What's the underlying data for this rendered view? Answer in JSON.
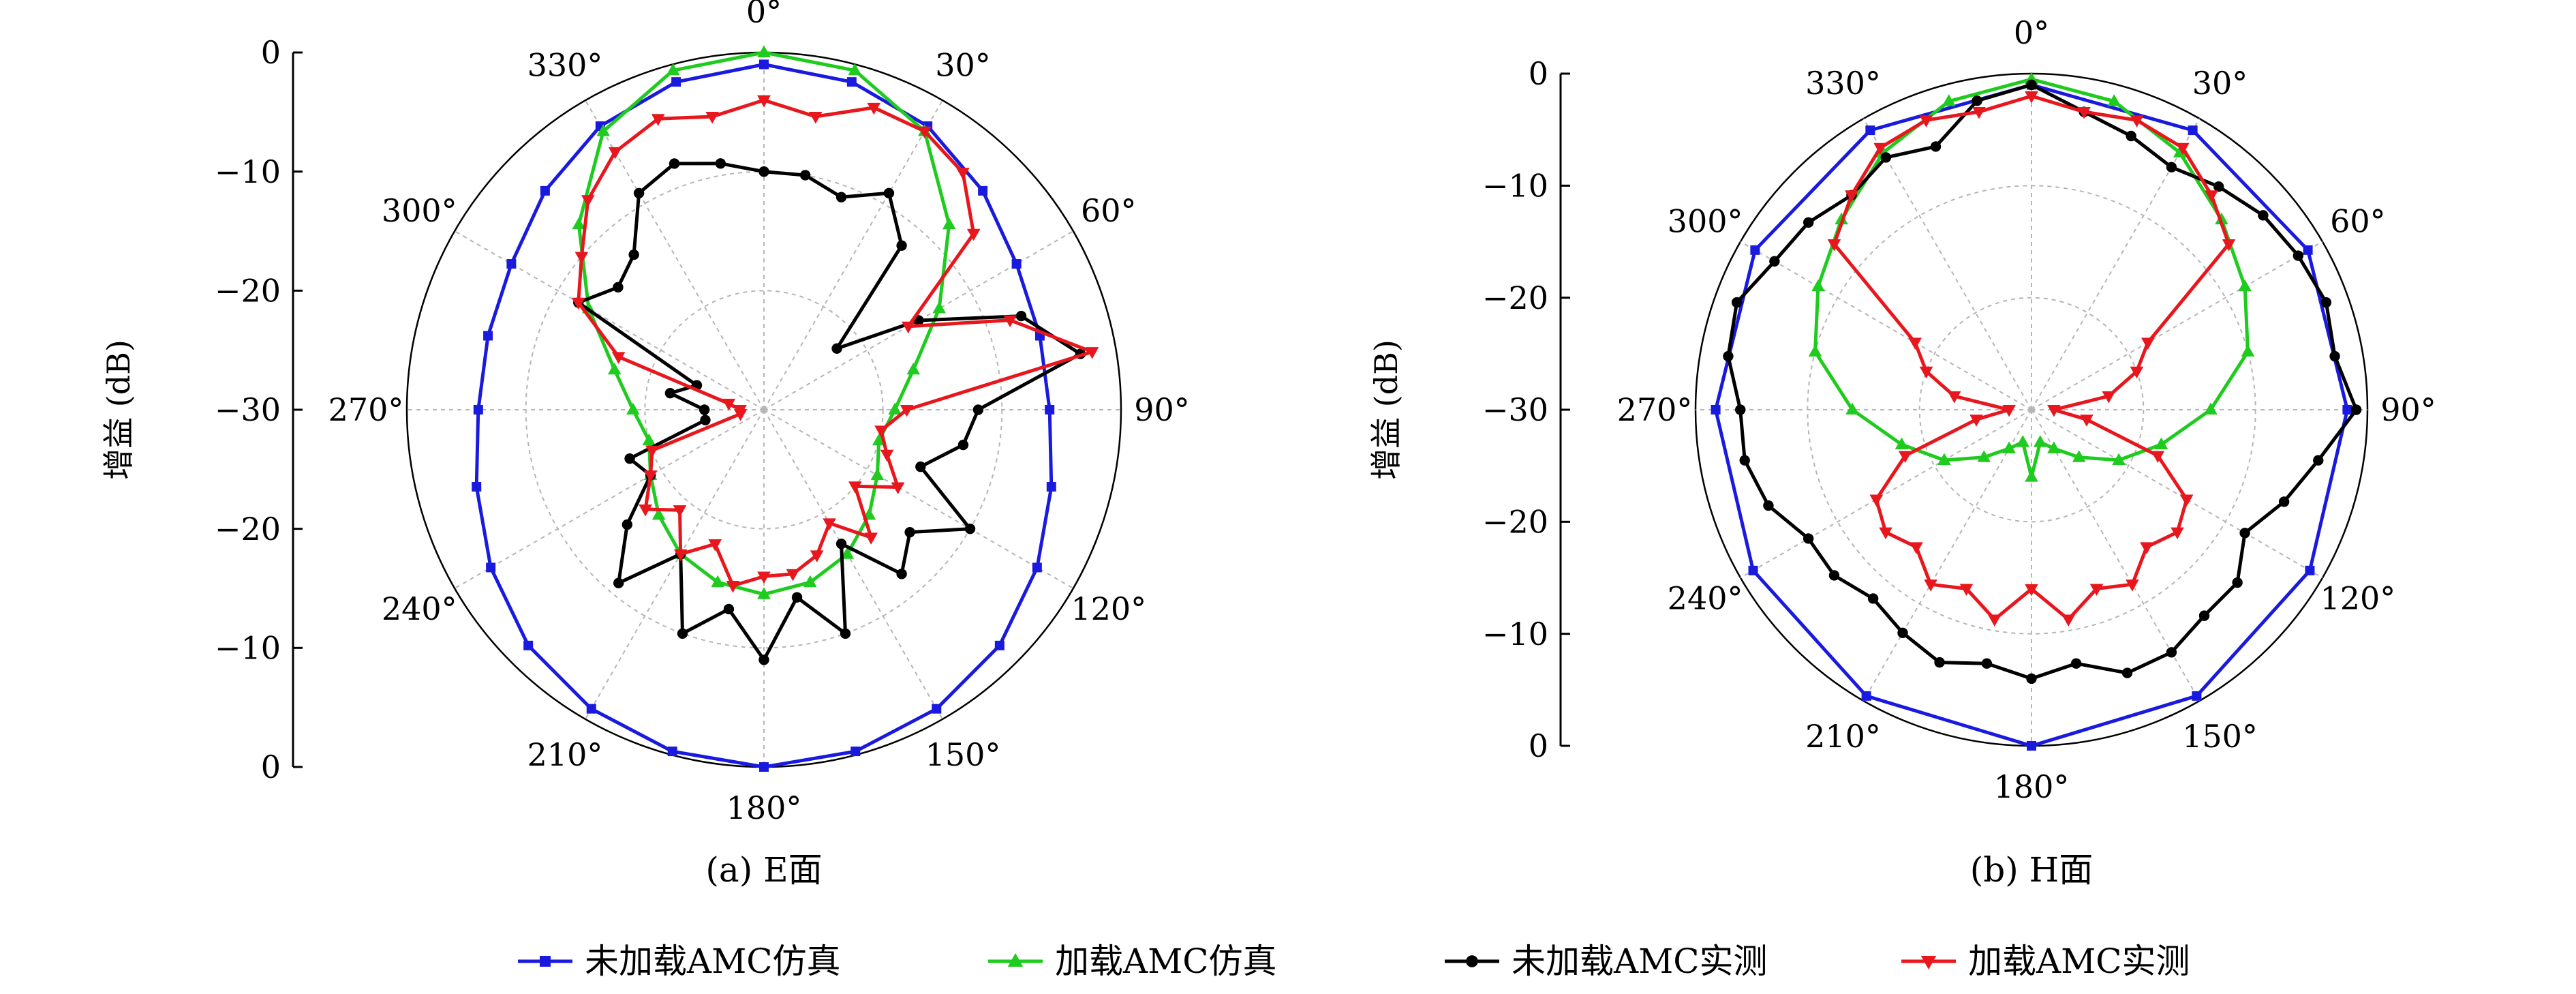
{
  "legend": [
    {
      "label": "未加载AMC仿真",
      "color": "#1a1adf",
      "marker": "square"
    },
    {
      "label": "加载AMC仿真",
      "color": "#1ecb1e",
      "marker": "triangle-up"
    },
    {
      "label": "未加载AMC实测",
      "color": "#000000",
      "marker": "circle"
    },
    {
      "label": "加载AMC实测",
      "color": "#e8161d",
      "marker": "triangle-down"
    }
  ],
  "chart_data": [
    {
      "type": "polar",
      "panel_label": "(a) E面",
      "ylabel": "增益 (dB)",
      "radial_ticks_top": [
        "0",
        "−10",
        "−20",
        "−30"
      ],
      "radial_ticks_bottom": [
        "−20",
        "−10",
        "0"
      ],
      "angle_labels": [
        "0°",
        "30°",
        "60°",
        "90°",
        "120°",
        "150°",
        "180°",
        "210°",
        "240°",
        "270°",
        "300°",
        "330°"
      ],
      "rlim_db": [
        -30,
        0
      ],
      "series": [
        {
          "name": "未加载AMC仿真",
          "color": "#1a1adf",
          "angles": [
            0,
            15,
            30,
            45,
            60,
            75,
            90,
            105,
            120,
            135,
            150,
            165,
            180,
            195,
            210,
            225,
            240,
            255,
            270,
            285,
            300,
            315,
            330,
            345,
            360
          ],
          "values": [
            -1,
            -1.5,
            -2.5,
            -4,
            -5.5,
            -6,
            -6,
            -5,
            -3.5,
            -2,
            -1,
            -0.3,
            0,
            -0.3,
            -1,
            -2,
            -3.5,
            -5,
            -6,
            -6,
            -5.5,
            -4,
            -2.5,
            -1.5,
            -1
          ]
        },
        {
          "name": "加载AMC仿真",
          "color": "#1ecb1e",
          "angles": [
            0,
            15,
            30,
            45,
            60,
            75,
            90,
            105,
            120,
            135,
            150,
            165,
            180,
            195,
            210,
            225,
            240,
            255,
            270,
            285,
            300,
            315,
            330,
            345,
            360
          ],
          "values": [
            0,
            -0.5,
            -3,
            -8,
            -13,
            -17,
            -19,
            -20,
            -19,
            -17.5,
            -16,
            -15,
            -14.5,
            -15,
            -16,
            -17.5,
            -19,
            -20,
            -19,
            -17,
            -13,
            -8,
            -3,
            -0.5,
            0
          ]
        },
        {
          "name": "未加载AMC实测",
          "color": "#000000",
          "angles": [
            0,
            10,
            20,
            30,
            40,
            50,
            60,
            70,
            80,
            90,
            100,
            110,
            120,
            130,
            140,
            150,
            160,
            170,
            180,
            190,
            200,
            210,
            220,
            230,
            240,
            250,
            260,
            270,
            280,
            290,
            300,
            310,
            320,
            330,
            340,
            350,
            360
          ],
          "values": [
            -10,
            -10,
            -11,
            -9,
            -12,
            -22,
            -15,
            -7,
            -3,
            -12,
            -13,
            -16,
            -10,
            -14,
            -12,
            -17,
            -10,
            -14,
            -9,
            -13,
            -10,
            -16,
            -11,
            -15,
            -19,
            -18,
            -25,
            -25,
            -22,
            -24,
            -12,
            -14,
            -13,
            -9,
            -8,
            -9,
            -10
          ]
        },
        {
          "name": "加载AMC实测",
          "color": "#e8161d",
          "angles": [
            0,
            10,
            20,
            30,
            40,
            50,
            60,
            70,
            80,
            90,
            100,
            110,
            120,
            130,
            140,
            150,
            160,
            170,
            180,
            190,
            200,
            210,
            220,
            230,
            240,
            250,
            260,
            270,
            280,
            290,
            300,
            310,
            320,
            330,
            340,
            350,
            360
          ],
          "values": [
            -4,
            -5,
            -3,
            -3,
            -4,
            -7,
            -16,
            -8,
            -2,
            -18,
            -20,
            -19,
            -17,
            -20,
            -16,
            -19,
            -17,
            -16,
            -16,
            -15,
            -18,
            -16,
            -19,
            -17,
            -19,
            -20,
            -28,
            -28,
            -27,
            -17,
            -12,
            -10,
            -7,
            -5,
            -4,
            -5,
            -4
          ]
        }
      ]
    },
    {
      "type": "polar",
      "panel_label": "(b) H面",
      "ylabel": "增益 (dB)",
      "radial_ticks_top": [
        "0",
        "−10",
        "−20",
        "−30"
      ],
      "radial_ticks_bottom": [
        "−20",
        "−10",
        "0"
      ],
      "angle_labels": [
        "0°",
        "30°",
        "60°",
        "90°",
        "120°",
        "150°",
        "180°",
        "210°",
        "240°",
        "270°",
        "300°",
        "330°"
      ],
      "rlim_db": [
        -30,
        0
      ],
      "series": [
        {
          "name": "未加载AMC仿真",
          "color": "#1a1adf",
          "angles": [
            0,
            30,
            60,
            90,
            120,
            150,
            180,
            210,
            240,
            270,
            300,
            330,
            360
          ],
          "values": [
            -1,
            -1.2,
            -1.5,
            -1.8,
            -1.3,
            -0.5,
            0,
            -0.5,
            -1.3,
            -1.8,
            -1.5,
            -1.2,
            -1
          ]
        },
        {
          "name": "加载AMC仿真",
          "color": "#1ecb1e",
          "angles": [
            0,
            15,
            30,
            45,
            60,
            75,
            90,
            105,
            120,
            135,
            150,
            165,
            180,
            195,
            210,
            225,
            240,
            255,
            270,
            285,
            300,
            315,
            330,
            345,
            360
          ],
          "values": [
            -0.5,
            -1.5,
            -3.5,
            -6,
            -8,
            -10,
            -14,
            -18,
            -21,
            -24,
            -26,
            -27,
            -24,
            -27,
            -26,
            -24,
            -21,
            -18,
            -14,
            -10,
            -8,
            -6,
            -3.5,
            -1.5,
            -0.5
          ]
        },
        {
          "name": "未加载AMC实测",
          "color": "#000000",
          "angles": [
            0,
            10,
            20,
            30,
            40,
            50,
            60,
            70,
            80,
            90,
            100,
            110,
            120,
            130,
            140,
            150,
            160,
            170,
            180,
            190,
            200,
            210,
            220,
            230,
            240,
            250,
            260,
            270,
            280,
            290,
            300,
            310,
            320,
            330,
            340,
            350,
            360
          ],
          "values": [
            -1,
            -3,
            -4,
            -5,
            -4,
            -3,
            -2.5,
            -2,
            -2.5,
            -1,
            -4,
            -6,
            -8,
            -6,
            -6,
            -5,
            -5,
            -7,
            -6,
            -7,
            -6,
            -7,
            -8,
            -7,
            -7,
            -5,
            -4,
            -4,
            -2.5,
            -2,
            -3.5,
            -4,
            -5,
            -4,
            -5,
            -2,
            -1
          ]
        },
        {
          "name": "加载AMC实测",
          "color": "#e8161d",
          "angles": [
            0,
            10,
            20,
            30,
            40,
            50,
            60,
            70,
            80,
            90,
            100,
            110,
            120,
            130,
            140,
            150,
            160,
            170,
            180,
            190,
            200,
            210,
            220,
            230,
            240,
            250,
            260,
            270,
            280,
            290,
            300,
            310,
            320,
            330,
            340,
            350,
            360
          ],
          "values": [
            -2,
            -3,
            -2.5,
            -3,
            -5,
            -7,
            -18,
            -20,
            -23,
            -28,
            -25,
            -18,
            -14,
            -13,
            -14,
            -12,
            -13,
            -11,
            -14,
            -11,
            -13,
            -12,
            -14,
            -13,
            -14,
            -18,
            -25,
            -28,
            -23,
            -20,
            -18,
            -7,
            -5,
            -3,
            -2.5,
            -3,
            -2
          ]
        }
      ]
    }
  ]
}
